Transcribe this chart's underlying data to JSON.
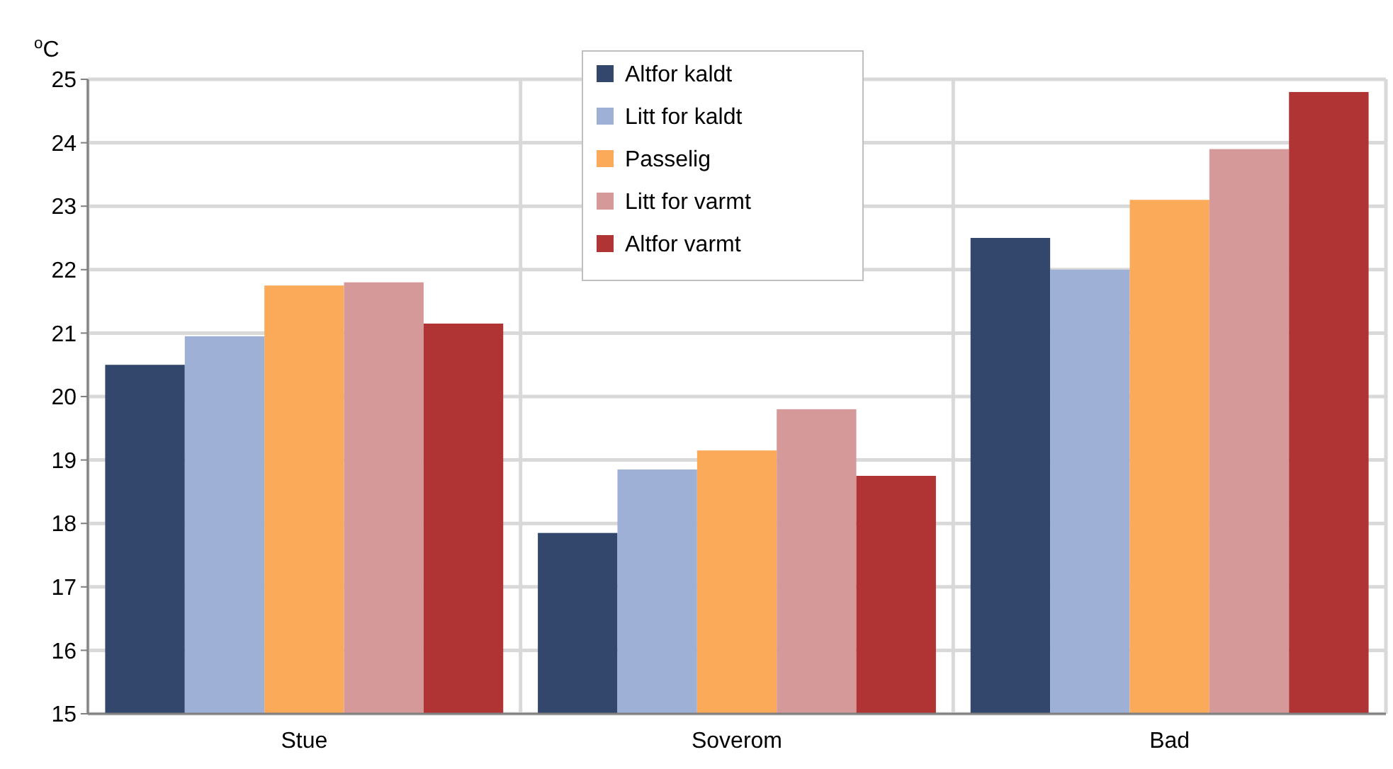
{
  "chart_data": {
    "type": "bar",
    "ylabel": "$^{o}$C",
    "categories": [
      "Stue",
      "Soverom",
      "Bad"
    ],
    "series": [
      {
        "name": "Altfor kaldt",
        "color": "#33466b",
        "values": [
          20.5,
          17.85,
          22.5
        ]
      },
      {
        "name": "Litt for kaldt",
        "color": "#9fb0d6",
        "values": [
          20.95,
          18.85,
          22.0
        ]
      },
      {
        "name": "Passelig",
        "color": "#fbaa5a",
        "values": [
          21.75,
          19.15,
          23.1
        ]
      },
      {
        "name": "Litt for varmt",
        "color": "#d69999",
        "values": [
          21.8,
          19.8,
          23.9
        ]
      },
      {
        "name": "Altfor varmt",
        "color": "#b03434",
        "values": [
          21.15,
          18.75,
          24.8
        ]
      }
    ],
    "ylim": [
      15,
      25
    ],
    "yticks": [
      15,
      16,
      17,
      18,
      19,
      20,
      21,
      22,
      23,
      24,
      25
    ],
    "grid": true,
    "legend": "top"
  }
}
